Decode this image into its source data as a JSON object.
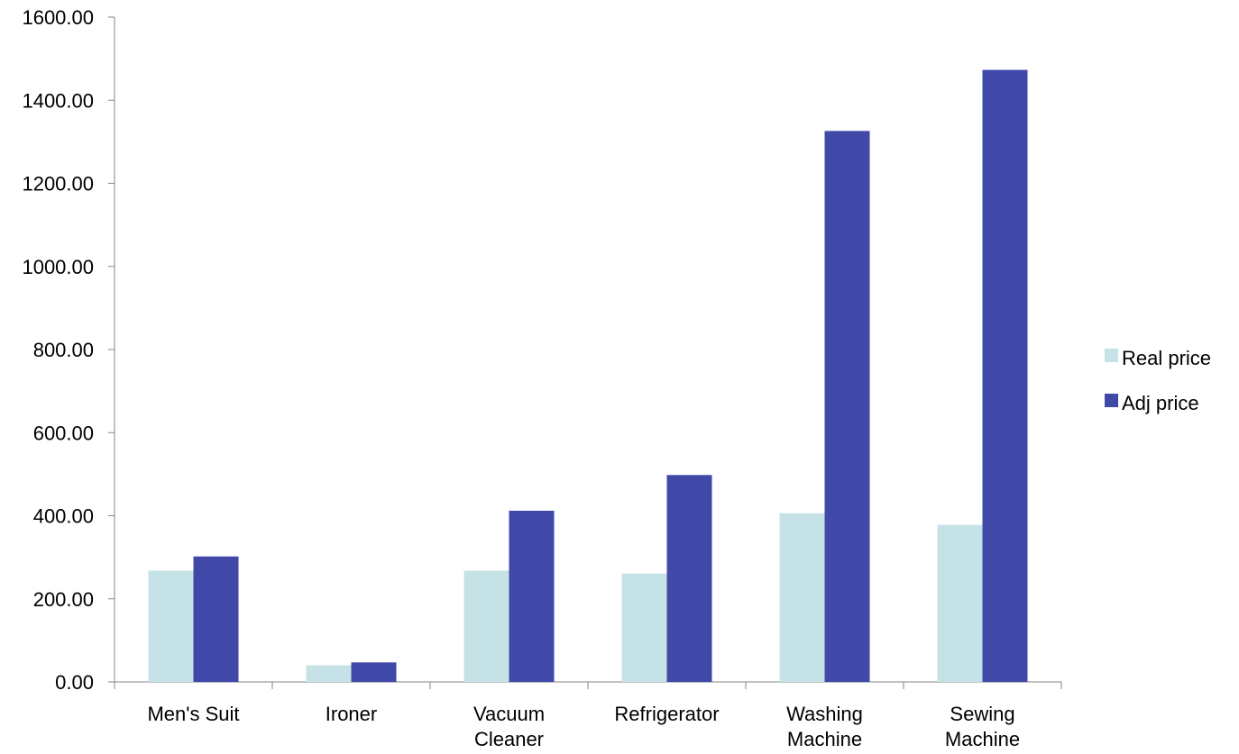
{
  "chart_data": {
    "type": "bar",
    "categories": [
      [
        "Men's Suit"
      ],
      [
        "Ironer"
      ],
      [
        "Vacuum",
        "Cleaner"
      ],
      [
        "Refrigerator"
      ],
      [
        "Washing",
        "Machine"
      ],
      [
        "Sewing",
        "Machine"
      ]
    ],
    "series": [
      {
        "name": "Real price",
        "color": "#c5e3e6",
        "values": [
          268,
          40,
          268,
          261,
          406,
          378
        ]
      },
      {
        "name": "Adj price",
        "color": "#4149a8",
        "values": [
          302,
          47,
          412,
          498,
          1326,
          1473
        ]
      }
    ],
    "ylim": [
      0,
      1600
    ],
    "yticks": [
      "0.00",
      "200.00",
      "400.00",
      "600.00",
      "800.00",
      "1000.00",
      "1200.00",
      "1400.00",
      "1600.00"
    ],
    "grid": false,
    "legend_position": "right"
  }
}
